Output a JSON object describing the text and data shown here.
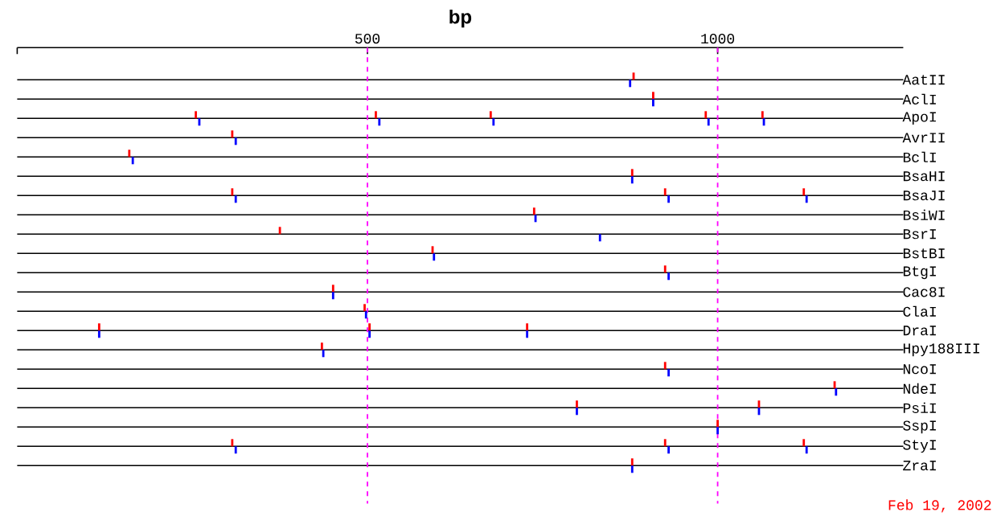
{
  "chart_data": {
    "type": "scatter",
    "orientation": "horizontal",
    "xlabel": "bp",
    "categories": [
      "AatII",
      "AclI",
      "ApoI",
      "AvrII",
      "BclI",
      "BsaHI",
      "BsaJI",
      "BsiWI",
      "BsrI",
      "BstBI",
      "BtgI",
      "Cac8I",
      "ClaI",
      "DraI",
      "Hpy188III",
      "NcoI",
      "NdeI",
      "PsiI",
      "SspI",
      "StyI",
      "ZraI"
    ],
    "xlim": [
      0,
      1265
    ],
    "xticks": [
      {
        "value": 0,
        "label": null
      },
      500,
      1000
    ],
    "grid": "y",
    "ref_lines": [
      {
        "axis": "x",
        "value": 500,
        "color": "#ff00ff",
        "line_style": "dashed"
      },
      {
        "axis": "x",
        "value": 1000,
        "color": "#ff00ff",
        "line_style": "dashed"
      }
    ],
    "series": [
      {
        "color": "#ff0000",
        "values": [
          880,
          908,
          255,
          307,
          160,
          878,
          307,
          738,
          375,
          593,
          925,
          451,
          496,
          117,
          435,
          925,
          1167,
          799,
          1000,
          307,
          878
        ]
      },
      {
        "color": "#ff0000",
        "values": [
          null,
          null,
          512,
          null,
          null,
          null,
          925,
          null,
          null,
          null,
          null,
          null,
          null,
          503,
          null,
          null,
          null,
          1059,
          null,
          925,
          null
        ]
      },
      {
        "color": "#ff0000",
        "values": [
          null,
          null,
          676,
          null,
          null,
          null,
          1123,
          null,
          null,
          null,
          null,
          null,
          null,
          728,
          null,
          null,
          null,
          null,
          null,
          1123,
          null
        ]
      },
      {
        "color": "#ff0000",
        "values": [
          null,
          null,
          983,
          null,
          null,
          null,
          null,
          null,
          null,
          null,
          null,
          null,
          null,
          null,
          null,
          null,
          null,
          null,
          null,
          null,
          null
        ]
      },
      {
        "color": "#ff0000",
        "values": [
          null,
          null,
          1064,
          null,
          null,
          null,
          null,
          null,
          null,
          null,
          null,
          null,
          null,
          null,
          null,
          null,
          null,
          null,
          null,
          null,
          null
        ]
      },
      {
        "color": "#0000ff",
        "values": [
          875,
          908,
          260,
          312,
          165,
          878,
          312,
          740,
          832,
          595,
          930,
          451,
          498,
          117,
          437,
          930,
          1169,
          799,
          1000,
          312,
          878
        ]
      },
      {
        "color": "#0000ff",
        "values": [
          null,
          null,
          517,
          null,
          null,
          null,
          930,
          null,
          null,
          null,
          null,
          null,
          null,
          503,
          null,
          null,
          null,
          1059,
          null,
          930,
          null
        ]
      },
      {
        "color": "#0000ff",
        "values": [
          null,
          null,
          680,
          null,
          null,
          null,
          1127,
          null,
          null,
          null,
          null,
          null,
          null,
          728,
          null,
          null,
          null,
          null,
          null,
          1127,
          null
        ]
      },
      {
        "color": "#0000ff",
        "values": [
          null,
          null,
          987,
          null,
          null,
          null,
          null,
          null,
          null,
          null,
          null,
          null,
          null,
          null,
          null,
          null,
          null,
          null,
          null,
          null,
          null
        ]
      },
      {
        "color": "#0000ff",
        "values": [
          null,
          null,
          1066,
          null,
          null,
          null,
          null,
          null,
          null,
          null,
          null,
          null,
          null,
          null,
          null,
          null,
          null,
          null,
          null,
          null,
          null
        ]
      }
    ],
    "annotations": [
      "Feb 19, 2002"
    ]
  }
}
